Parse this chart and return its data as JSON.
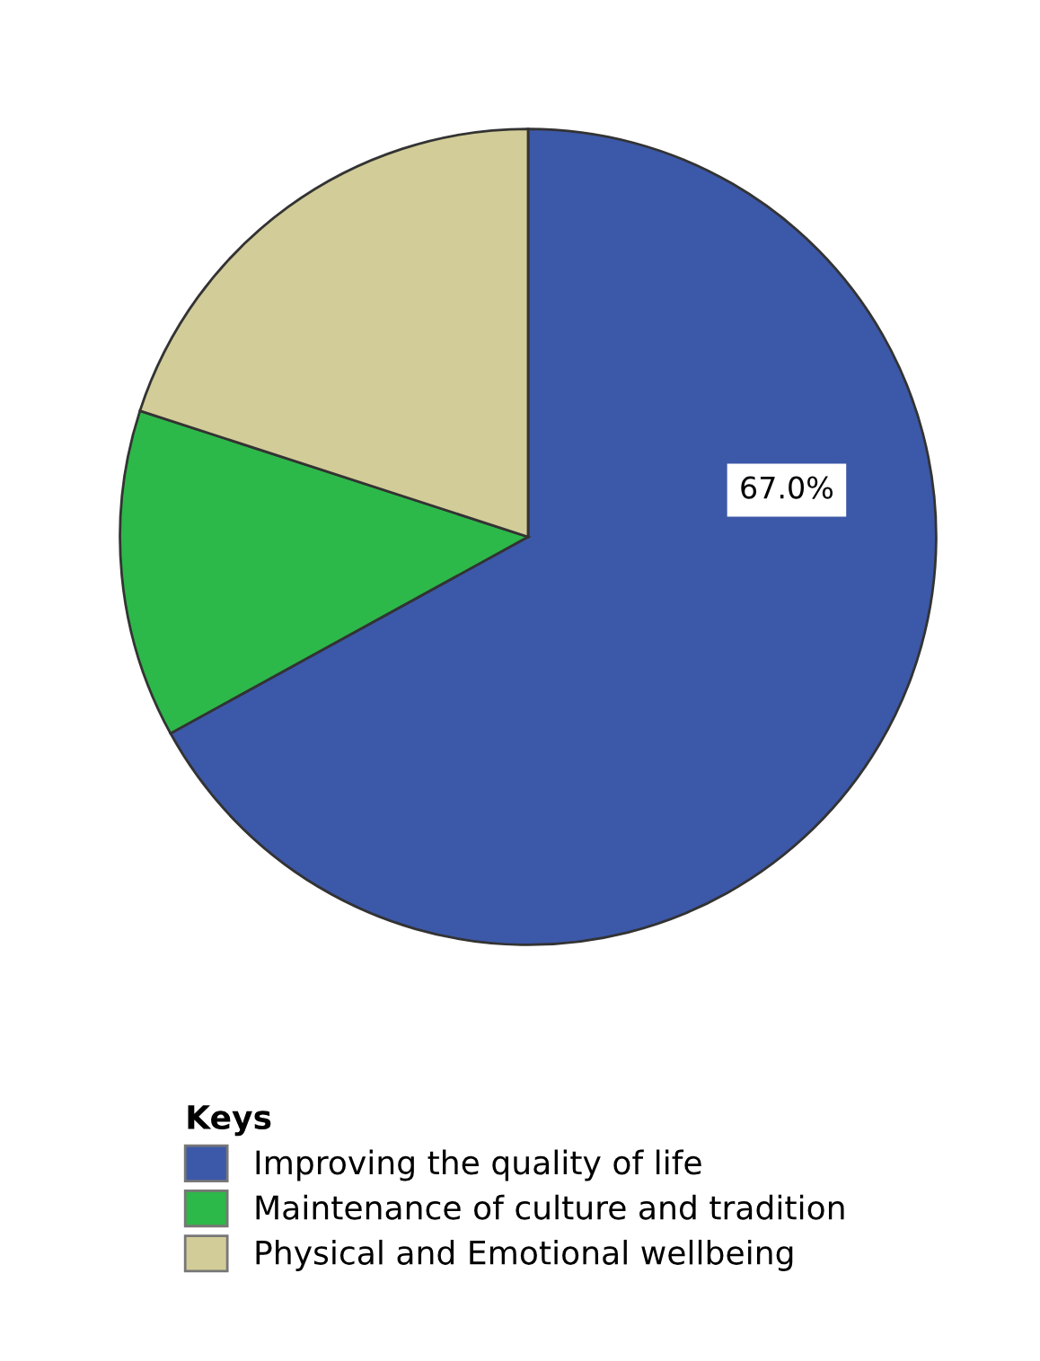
{
  "chart_data": {
    "type": "pie",
    "legend_title": "Keys",
    "legend": "bottom",
    "categories": [
      "Improving the quality of life",
      "Maintenance of culture and tradition",
      "Physical and Emotional wellbeing"
    ],
    "values": [
      67.0,
      13.0,
      20.0
    ],
    "colors": [
      "#3c58a8",
      "#2db84a",
      "#d2cc98"
    ],
    "value_labels": [
      "67.0%",
      null,
      null
    ]
  }
}
